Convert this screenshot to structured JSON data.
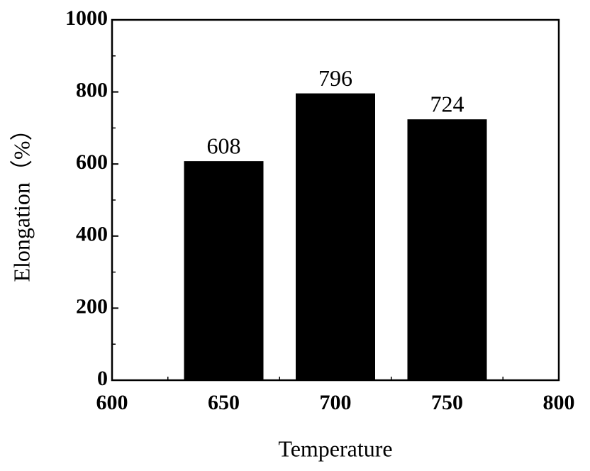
{
  "chart_data": {
    "type": "bar",
    "x": [
      650,
      700,
      750
    ],
    "values": [
      608,
      796,
      724
    ],
    "color": "#000000",
    "xlim": [
      600,
      800
    ],
    "xticks": [
      600,
      650,
      700,
      750,
      800
    ],
    "ylim": [
      0,
      1000
    ],
    "yticks": [
      0,
      200,
      400,
      600,
      800,
      1000
    ],
    "xlabel": "Temperature",
    "ylabel": "Elongation（%）",
    "grid": false
  }
}
